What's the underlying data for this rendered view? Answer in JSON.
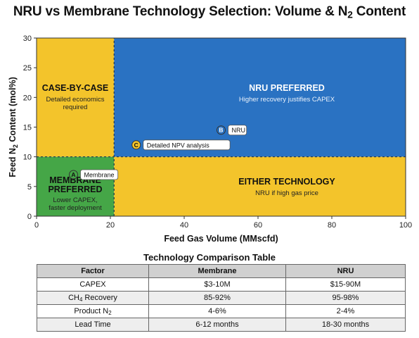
{
  "chart_data": {
    "type": "scatter",
    "title": "NRU vs Membrane Technology Selection: Volume & N2 Content",
    "xlabel": "Feed Gas Volume (MMscfd)",
    "ylabel": "Feed N2 Content (mol%)",
    "xlim": [
      0,
      100
    ],
    "ylim": [
      0,
      30
    ],
    "x_ticks": [
      "0",
      "20",
      "40",
      "60",
      "80",
      "100"
    ],
    "y_ticks": [
      "0",
      "5",
      "10",
      "15",
      "20",
      "25",
      "30"
    ],
    "thresholds": {
      "volume": 21,
      "n2": 10
    },
    "regions": [
      {
        "name": "CASE-BY-CASE",
        "desc": "Detailed economics required",
        "x": [
          0,
          21
        ],
        "y": [
          10,
          30
        ],
        "color": "#f3c42b"
      },
      {
        "name": "NRU PREFERRED",
        "desc": "Higher recovery justifies CAPEX",
        "x": [
          21,
          100
        ],
        "y": [
          10,
          30
        ],
        "color": "#2a72c2"
      },
      {
        "name": "MEMBRANE PREFERRED",
        "desc": "Lower CAPEX, faster deployment",
        "x": [
          0,
          21
        ],
        "y": [
          0,
          10
        ],
        "color": "#45a647"
      },
      {
        "name": "EITHER TECHNOLOGY",
        "desc": "NRU if high gas price",
        "x": [
          21,
          100
        ],
        "y": [
          0,
          10
        ],
        "color": "#f3c42b"
      }
    ],
    "points": [
      {
        "id": "A",
        "label": "Membrane",
        "x": 10,
        "y": 7,
        "color": "#45a647"
      },
      {
        "id": "B",
        "label": "NRU",
        "x": 50,
        "y": 14.5,
        "color": "#2a72c2"
      },
      {
        "id": "C",
        "label": "Detailed NPV analysis",
        "x": 27,
        "y": 12,
        "color": "#f3c42b"
      }
    ]
  },
  "table": {
    "title": "Technology Comparison Table",
    "headers": [
      "Factor",
      "Membrane",
      "NRU"
    ],
    "rows": [
      [
        "CAPEX",
        "$3-10M",
        "$15-90M"
      ],
      [
        "CH4 Recovery",
        "85-92%",
        "95-98%"
      ],
      [
        "Product N2",
        "4-6%",
        "2-4%"
      ],
      [
        "Lead Time",
        "6-12 months",
        "18-30 months"
      ]
    ]
  }
}
